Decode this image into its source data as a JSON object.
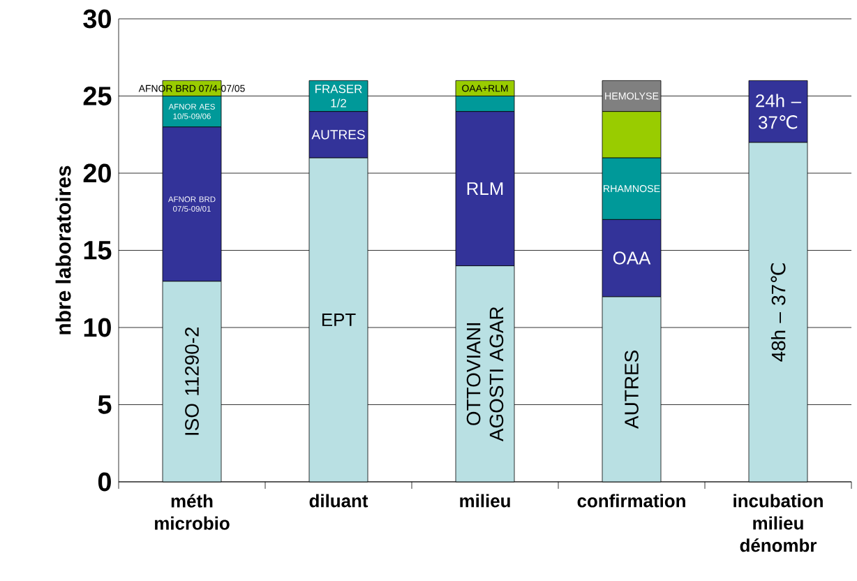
{
  "chart_data": {
    "type": "bar",
    "stacked": true,
    "ylabel": "nbre laboratoires",
    "categories": [
      "méth microbio",
      "diluant",
      "milieu",
      "confirmation",
      "incubation milieu dénombr"
    ],
    "ylim": [
      0,
      30
    ],
    "yticks": [
      0,
      5,
      10,
      15,
      20,
      25,
      30
    ],
    "grid": "y",
    "legend": false,
    "series": [
      {
        "color": "#b9e0e3",
        "values": [
          13,
          21,
          14,
          12,
          22
        ]
      },
      {
        "color": "#333399",
        "values": [
          10,
          3,
          10,
          5,
          4
        ]
      },
      {
        "color": "#009999",
        "values": [
          2,
          2,
          1,
          4,
          null
        ]
      },
      {
        "color": "#99cc00",
        "values": [
          1,
          null,
          1,
          3,
          null
        ]
      },
      {
        "color": "#808080",
        "values": [
          null,
          null,
          null,
          2,
          null
        ]
      }
    ],
    "annotations": [
      "ISO 11290-2",
      "AFNOR BRD 07/5-09/01",
      "AFNOR AES 10/5-09/06",
      "AFNOR BRD 07/4-07/05",
      "EPT",
      "AUTRES",
      "FRASER 1/2",
      "OTTOVIANI AGOSTI AGAR",
      "RLM",
      null,
      "OAA+RLM",
      "AUTRES",
      "OAA",
      "RHAMNOSE",
      null,
      "HEMOLYSE",
      "48h – 37℃",
      "24h – 37℃"
    ]
  }
}
